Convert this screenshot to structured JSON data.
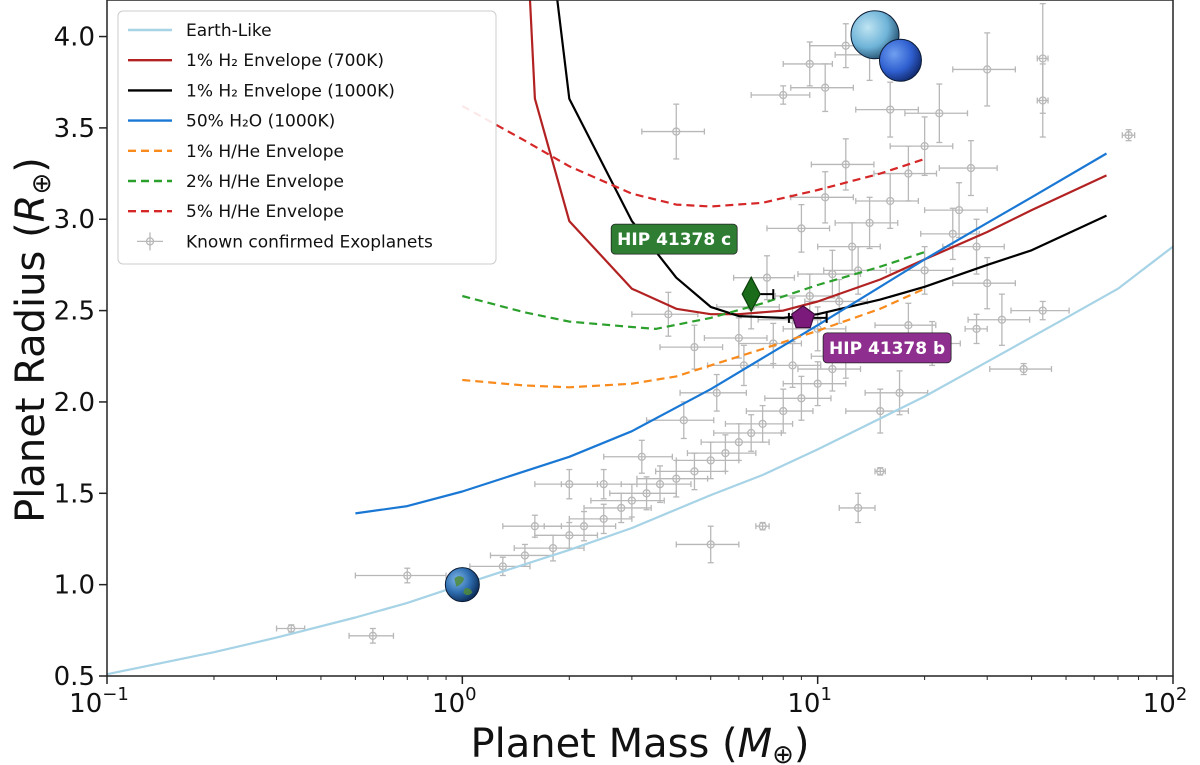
{
  "chart_data": {
    "type": "scatter",
    "title": "",
    "xlabel": "Planet Mass (M⊕)",
    "ylabel": "Planet Radius (R⊕)",
    "xscale": "log",
    "xlim": [
      0.1,
      100
    ],
    "ylim": [
      0.5,
      4.2
    ],
    "x_ticks": [
      {
        "value": 0.1,
        "base": "10",
        "exp": "−1"
      },
      {
        "value": 1,
        "base": "10",
        "exp": "0"
      },
      {
        "value": 10,
        "base": "10",
        "exp": "1"
      },
      {
        "value": 100,
        "base": "10",
        "exp": "2"
      }
    ],
    "y_ticks": [
      {
        "value": 0.5,
        "label": "0.5"
      },
      {
        "value": 1.0,
        "label": "1.0"
      },
      {
        "value": 1.5,
        "label": "1.5"
      },
      {
        "value": 2.0,
        "label": "2.0"
      },
      {
        "value": 2.5,
        "label": "2.5"
      },
      {
        "value": 3.0,
        "label": "3.0"
      },
      {
        "value": 3.5,
        "label": "3.5"
      },
      {
        "value": 4.0,
        "label": "4.0"
      }
    ],
    "legend_position": "top-left",
    "series": [
      {
        "name": "Earth-Like",
        "label": "Earth-Like",
        "color": "#a6d3e6",
        "style": "solid",
        "x": [
          0.1,
          0.2,
          0.3,
          0.5,
          0.7,
          1,
          2,
          3,
          5,
          7,
          10,
          20,
          30,
          50,
          70,
          100
        ],
        "y": [
          0.51,
          0.63,
          0.71,
          0.82,
          0.9,
          1.0,
          1.19,
          1.31,
          1.49,
          1.6,
          1.74,
          2.03,
          2.22,
          2.46,
          2.62,
          2.85
        ]
      },
      {
        "name": "1% H2 Envelope (700K)",
        "label": "1% H₂ Envelope (700K)",
        "color": "#b22222",
        "style": "solid",
        "x": [
          1.55,
          1.6,
          2.0,
          3.0,
          4.0,
          5.0,
          6.0,
          8.0,
          10,
          15,
          20,
          30,
          40,
          65
        ],
        "y": [
          4.2,
          3.66,
          2.99,
          2.62,
          2.51,
          2.48,
          2.48,
          2.5,
          2.55,
          2.67,
          2.78,
          2.93,
          3.05,
          3.24
        ]
      },
      {
        "name": "1% H2 Envelope (1000K)",
        "label": "1% H₂ Envelope (1000K)",
        "color": "#000000",
        "style": "solid",
        "x": [
          1.85,
          2.0,
          3.0,
          4.0,
          5.0,
          6.0,
          8.0,
          10,
          15,
          20,
          30,
          40,
          65
        ],
        "y": [
          4.2,
          3.66,
          2.99,
          2.68,
          2.52,
          2.47,
          2.46,
          2.48,
          2.56,
          2.63,
          2.75,
          2.83,
          3.02
        ]
      },
      {
        "name": "50% H2O (1000K)",
        "label": "50% H₂O (1000K)",
        "color": "#1a78d4",
        "style": "solid",
        "x": [
          0.5,
          0.7,
          1,
          2,
          3,
          5,
          7,
          10,
          15,
          20,
          30,
          40,
          65
        ],
        "y": [
          1.39,
          1.43,
          1.51,
          1.7,
          1.84,
          2.07,
          2.24,
          2.42,
          2.63,
          2.78,
          2.98,
          3.12,
          3.36
        ]
      },
      {
        "name": "1% H/He Envelope",
        "label": "1% H/He Envelope",
        "color": "#f98a1c",
        "style": "dashed",
        "x": [
          1.0,
          1.5,
          2.0,
          3.0,
          4.0,
          5.0,
          7.0,
          10,
          15,
          20
        ],
        "y": [
          2.12,
          2.09,
          2.08,
          2.1,
          2.14,
          2.2,
          2.29,
          2.39,
          2.51,
          2.62
        ]
      },
      {
        "name": "2% H/He Envelope",
        "label": "2% H/He Envelope",
        "color": "#2ca02c",
        "style": "dashed",
        "x": [
          1.0,
          1.5,
          2.0,
          3.0,
          3.5,
          5.0,
          7.0,
          10,
          15,
          20
        ],
        "y": [
          2.58,
          2.49,
          2.44,
          2.41,
          2.4,
          2.46,
          2.54,
          2.64,
          2.74,
          2.82
        ]
      },
      {
        "name": "5% H/He Envelope",
        "label": "5% H/He Envelope",
        "color": "#d62728",
        "style": "dashed",
        "x": [
          1.0,
          1.5,
          2.0,
          3.0,
          4.0,
          5.0,
          7.0,
          10,
          15,
          20
        ],
        "y": [
          3.62,
          3.43,
          3.29,
          3.14,
          3.08,
          3.07,
          3.09,
          3.16,
          3.25,
          3.33
        ]
      }
    ],
    "known_exoplanets": {
      "label": "Known confirmed Exoplanets",
      "color": "#b8b8b8",
      "points": [
        [
          0.33,
          0.76,
          0.03,
          0.02
        ],
        [
          0.56,
          0.72,
          0.08,
          0.04
        ],
        [
          0.7,
          1.05,
          0.2,
          0.04
        ],
        [
          1.3,
          1.1,
          0.25,
          0.05
        ],
        [
          1.5,
          1.16,
          0.3,
          0.06
        ],
        [
          1.8,
          1.2,
          0.4,
          0.07
        ],
        [
          2.0,
          1.27,
          0.4,
          0.07
        ],
        [
          2.2,
          1.32,
          0.5,
          0.08
        ],
        [
          2.5,
          1.36,
          0.5,
          0.08
        ],
        [
          2.8,
          1.42,
          0.6,
          0.08
        ],
        [
          3.0,
          1.46,
          0.7,
          0.09
        ],
        [
          3.3,
          1.5,
          0.7,
          0.09
        ],
        [
          3.6,
          1.55,
          0.8,
          0.1
        ],
        [
          4.0,
          1.58,
          0.9,
          0.1
        ],
        [
          4.5,
          1.62,
          1.0,
          0.1
        ],
        [
          5.0,
          1.68,
          1.0,
          0.1
        ],
        [
          5.5,
          1.72,
          1.2,
          0.1
        ],
        [
          6.0,
          1.78,
          1.3,
          0.1
        ],
        [
          6.5,
          1.83,
          1.4,
          0.1
        ],
        [
          7.0,
          1.88,
          1.5,
          0.1
        ],
        [
          8.0,
          1.95,
          1.7,
          0.12
        ],
        [
          9.0,
          2.02,
          1.9,
          0.12
        ],
        [
          10.0,
          2.1,
          2.0,
          0.12
        ],
        [
          11.0,
          2.18,
          2.2,
          0.12
        ],
        [
          12.0,
          2.25,
          2.4,
          0.12
        ],
        [
          2.5,
          1.55,
          0.6,
          0.08
        ],
        [
          3.2,
          1.7,
          0.7,
          0.09
        ],
        [
          4.2,
          1.9,
          0.9,
          0.1
        ],
        [
          5.2,
          2.05,
          1.1,
          0.1
        ],
        [
          6.2,
          2.2,
          1.3,
          0.11
        ],
        [
          7.5,
          2.32,
          1.5,
          0.11
        ],
        [
          8.5,
          2.45,
          1.7,
          0.12
        ],
        [
          9.5,
          2.58,
          1.9,
          0.12
        ],
        [
          11.0,
          2.7,
          2.2,
          0.13
        ],
        [
          12.5,
          2.85,
          2.5,
          0.13
        ],
        [
          14.0,
          2.98,
          2.8,
          0.14
        ],
        [
          16.0,
          3.1,
          3.2,
          0.15
        ],
        [
          18.0,
          3.25,
          3.6,
          0.15
        ],
        [
          20.0,
          3.4,
          4.0,
          0.16
        ],
        [
          22.0,
          3.58,
          4.4,
          0.16
        ],
        [
          12.0,
          3.95,
          2.5,
          0.12
        ],
        [
          14.0,
          3.9,
          2.8,
          0.14
        ],
        [
          10.5,
          3.72,
          2.1,
          0.13
        ],
        [
          16.0,
          3.6,
          3.2,
          0.15
        ],
        [
          25.0,
          3.05,
          5.0,
          0.15
        ],
        [
          28.0,
          2.85,
          5.5,
          0.15
        ],
        [
          30.0,
          2.65,
          6.0,
          0.14
        ],
        [
          33.0,
          2.45,
          6.5,
          0.14
        ],
        [
          38.0,
          2.18,
          7.5,
          0.03
        ],
        [
          43.0,
          2.5,
          8.0,
          0.05
        ],
        [
          43.0,
          3.65,
          1.5,
          0.2
        ],
        [
          43.0,
          3.88,
          1.5,
          0.3
        ],
        [
          75.0,
          3.46,
          3.0,
          0.03
        ],
        [
          30.0,
          3.82,
          6.0,
          0.2
        ],
        [
          4.0,
          3.48,
          0.8,
          0.15
        ],
        [
          8.0,
          3.68,
          1.5,
          0.05
        ],
        [
          9.5,
          3.85,
          1.5,
          0.12
        ],
        [
          15.0,
          1.62,
          0.5,
          0.02
        ],
        [
          7.0,
          1.32,
          0.3,
          0.02
        ],
        [
          13.0,
          1.42,
          1.5,
          0.08
        ],
        [
          5.0,
          1.22,
          1.0,
          0.1
        ],
        [
          3.8,
          2.48,
          0.8,
          0.12
        ],
        [
          4.5,
          2.3,
          0.9,
          0.12
        ],
        [
          15.0,
          1.95,
          3.0,
          0.12
        ],
        [
          18.0,
          2.42,
          3.5,
          0.12
        ],
        [
          20.0,
          2.72,
          4.0,
          0.13
        ],
        [
          24.0,
          2.92,
          4.5,
          0.14
        ],
        [
          27.0,
          3.28,
          5.0,
          0.15
        ],
        [
          8.5,
          2.2,
          1.7,
          0.12
        ],
        [
          10.0,
          2.4,
          2.0,
          0.12
        ],
        [
          11.5,
          2.55,
          2.3,
          0.12
        ],
        [
          13.0,
          2.72,
          2.6,
          0.13
        ],
        [
          2.0,
          1.55,
          0.4,
          0.08
        ],
        [
          1.6,
          1.32,
          0.3,
          0.06
        ],
        [
          6.5,
          2.52,
          1.3,
          0.12
        ],
        [
          7.2,
          2.68,
          1.4,
          0.12
        ],
        [
          9.0,
          2.95,
          1.8,
          0.13
        ],
        [
          10.5,
          3.12,
          2.1,
          0.14
        ],
        [
          12.0,
          3.3,
          2.4,
          0.14
        ],
        [
          6.0,
          2.35,
          1.2,
          0.11
        ],
        [
          17.0,
          2.05,
          3.4,
          0.12
        ],
        [
          21.0,
          2.32,
          4.2,
          0.12
        ],
        [
          28.0,
          2.4,
          2.0,
          0.08
        ]
      ]
    },
    "highlighted_planets": [
      {
        "name": "HIP 41378 c",
        "label": "HIP 41378 c",
        "mass": 6.5,
        "mass_err_minus": 0.2,
        "mass_err_plus": 1.0,
        "radius": 2.59,
        "radius_err": 0.07,
        "marker": "diamond",
        "color": "#1a6b1a",
        "label_bg": "#2e7d32"
      },
      {
        "name": "HIP 41378 b",
        "label": "HIP 41378 b",
        "mass": 9.1,
        "mass_err_minus": 0.8,
        "mass_err_plus": 1.5,
        "radius": 2.46,
        "radius_err": 0.04,
        "marker": "pentagon",
        "color": "#7b1a7b",
        "label_bg": "#8e2e8e"
      }
    ],
    "reference_bodies": [
      {
        "name": "Earth",
        "mass": 1.0,
        "radius": 1.0
      },
      {
        "name": "Neptune",
        "mass": 17.1,
        "radius": 3.87
      },
      {
        "name": "Uranus",
        "mass": 14.5,
        "radius": 4.01
      }
    ]
  }
}
